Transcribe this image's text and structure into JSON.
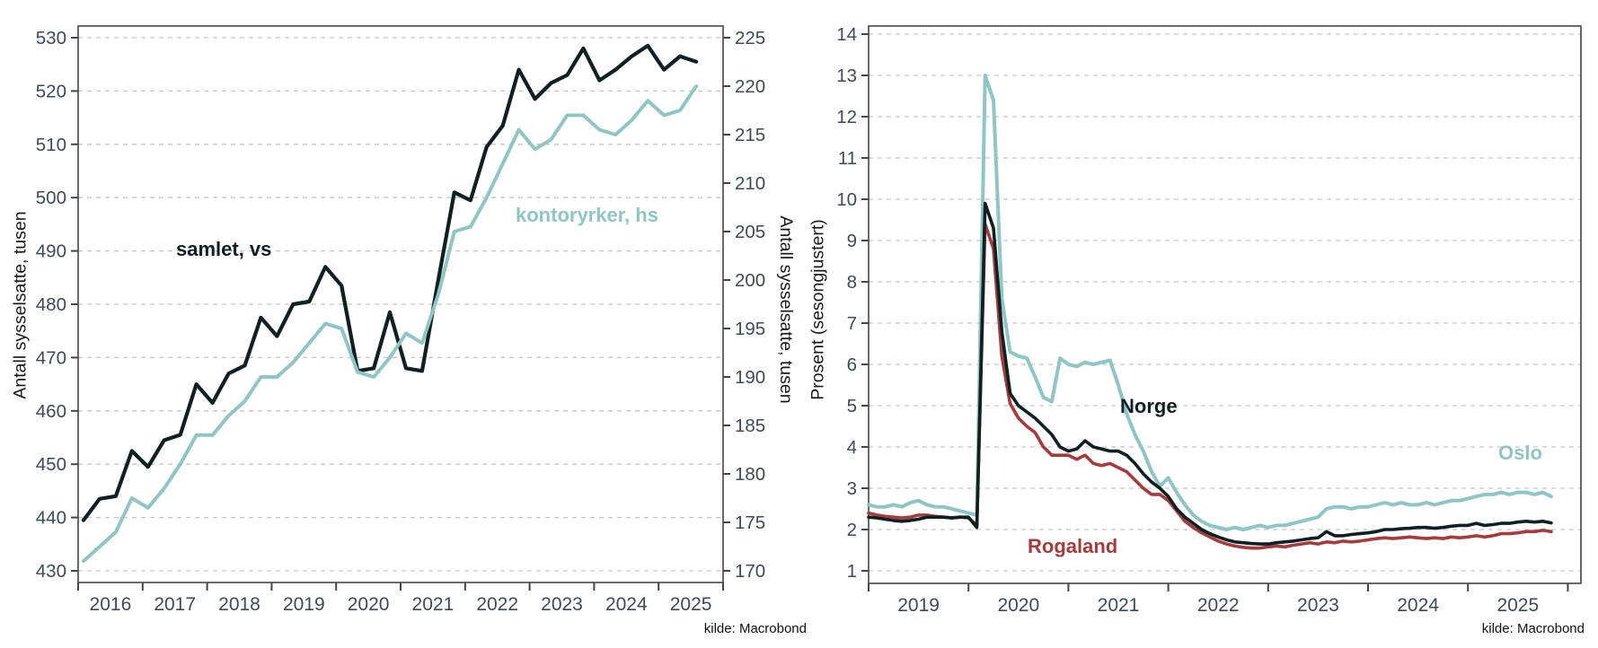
{
  "source_note": "kilde: Macrobond",
  "colors": {
    "dark_line": "#0f2023",
    "teal_line": "#8fc5c2",
    "red_line": "#a43b3c",
    "tick_text": "#3e4b57",
    "axis_border": "#454545",
    "gridline": "#c6c6c6",
    "label_text": "#1a1a1a",
    "background": "#ffffff"
  },
  "chart_data": [
    {
      "type": "line",
      "title": "",
      "ylabel_left": "Antall sysselsatte, tusen",
      "ylabel_right": "Antall sysselsatte, tusen",
      "source": "kilde: Macrobond",
      "grid": "horizontal-dashed",
      "legend_position": "inline-text-labels",
      "x_unit": "quarterly",
      "x_start": 2016.083,
      "x_step": 0.25,
      "x_axis": {
        "tick_years": [
          2016,
          2017,
          2018,
          2019,
          2020,
          2021,
          2022,
          2023,
          2024,
          2025,
          2026
        ],
        "labels": [
          "2016",
          "2017",
          "2018",
          "2019",
          "2020",
          "2021",
          "2022",
          "2023",
          "2024",
          "2025"
        ]
      },
      "left_axis": {
        "min": 430,
        "max": 530,
        "tick_step": 10,
        "ticks": [
          430,
          440,
          450,
          460,
          470,
          480,
          490,
          500,
          510,
          520,
          530
        ]
      },
      "right_axis": {
        "min": 170,
        "max": 225,
        "tick_step": 5,
        "ticks": [
          170,
          175,
          180,
          185,
          190,
          195,
          200,
          205,
          210,
          215,
          220,
          225
        ]
      },
      "series": [
        {
          "key": "samlet",
          "name": "samlet, vs",
          "axis": "left",
          "color": "#0f2023",
          "width": 4.2,
          "values": [
            439.5,
            443.5,
            444,
            452.5,
            449.5,
            454.5,
            455.5,
            465,
            461.5,
            467,
            468.5,
            477.5,
            474,
            480,
            480.5,
            487,
            483.5,
            467.5,
            468,
            478.5,
            468,
            467.5,
            484.5,
            501,
            499.5,
            509.5,
            513.5,
            524,
            518.5,
            521.5,
            523,
            528,
            522,
            524,
            526.5,
            528.5,
            524,
            526.5,
            525.5
          ]
        },
        {
          "key": "kontoryrker",
          "name": "kontoryrker, hs",
          "axis": "right",
          "color": "#8fc5c2",
          "width": 4,
          "values": [
            171,
            172.5,
            174,
            177.5,
            176.5,
            178.5,
            181,
            184,
            184,
            186,
            187.5,
            190,
            190,
            191.5,
            193.5,
            195.5,
            195,
            190.5,
            190,
            192,
            194.5,
            193.5,
            198.5,
            205,
            205.5,
            208.5,
            212,
            215.5,
            213.5,
            214.5,
            217,
            217,
            215.5,
            215,
            216.5,
            218.5,
            217,
            217.5,
            220
          ]
        }
      ]
    },
    {
      "type": "line",
      "title": "",
      "ylabel_left": "Prosent (sesongjustert)",
      "ylabel_right": "",
      "source": "kilde: Macrobond",
      "grid": "horizontal-dashed",
      "legend_position": "inline-text-labels",
      "x_unit": "monthly",
      "x_start": 2019.0,
      "x_step": 0.0833333,
      "x_axis": {
        "tick_years": [
          2019,
          2020,
          2021,
          2022,
          2023,
          2024,
          2025,
          2026
        ],
        "labels": [
          "2019",
          "2020",
          "2021",
          "2022",
          "2023",
          "2024",
          "2025"
        ]
      },
      "left_axis": {
        "min": 1,
        "max": 14,
        "tick_step": 1,
        "ticks": [
          1,
          2,
          3,
          4,
          5,
          6,
          7,
          8,
          9,
          10,
          11,
          12,
          13,
          14
        ]
      },
      "series": [
        {
          "key": "oslo",
          "name": "Oslo",
          "axis": "left",
          "color": "#8fc5c2",
          "width": 4,
          "values": [
            2.6,
            2.55,
            2.55,
            2.6,
            2.55,
            2.65,
            2.7,
            2.6,
            2.55,
            2.55,
            2.5,
            2.45,
            2.4,
            2.35,
            13.0,
            12.4,
            7.6,
            6.3,
            6.2,
            6.15,
            5.7,
            5.2,
            5.1,
            6.15,
            6.0,
            5.95,
            6.05,
            6.0,
            6.05,
            6.1,
            5.5,
            4.8,
            4.3,
            3.9,
            3.4,
            3.05,
            3.25,
            2.9,
            2.6,
            2.35,
            2.2,
            2.1,
            2.05,
            2.0,
            2.05,
            2.0,
            2.05,
            2.1,
            2.05,
            2.1,
            2.1,
            2.15,
            2.2,
            2.25,
            2.3,
            2.5,
            2.55,
            2.55,
            2.5,
            2.55,
            2.55,
            2.6,
            2.65,
            2.6,
            2.65,
            2.6,
            2.6,
            2.65,
            2.6,
            2.65,
            2.7,
            2.7,
            2.75,
            2.8,
            2.85,
            2.85,
            2.9,
            2.85,
            2.9,
            2.9,
            2.85,
            2.9,
            2.8
          ]
        },
        {
          "key": "rogaland",
          "name": "Rogaland",
          "axis": "left",
          "color": "#a43b3c",
          "width": 3.6,
          "values": [
            2.4,
            2.35,
            2.32,
            2.3,
            2.28,
            2.3,
            2.35,
            2.35,
            2.32,
            2.3,
            2.28,
            2.3,
            2.28,
            2.1,
            9.4,
            8.8,
            6.2,
            5.05,
            4.7,
            4.5,
            4.35,
            4.0,
            3.8,
            3.8,
            3.8,
            3.7,
            3.8,
            3.6,
            3.55,
            3.6,
            3.5,
            3.4,
            3.2,
            3.0,
            2.85,
            2.85,
            2.7,
            2.45,
            2.2,
            2.05,
            1.92,
            1.82,
            1.72,
            1.65,
            1.6,
            1.57,
            1.55,
            1.55,
            1.58,
            1.6,
            1.58,
            1.62,
            1.65,
            1.68,
            1.65,
            1.7,
            1.68,
            1.72,
            1.7,
            1.72,
            1.75,
            1.78,
            1.8,
            1.78,
            1.8,
            1.82,
            1.8,
            1.78,
            1.8,
            1.78,
            1.82,
            1.8,
            1.82,
            1.85,
            1.82,
            1.85,
            1.9,
            1.9,
            1.92,
            1.95,
            1.95,
            1.98,
            1.95
          ]
        },
        {
          "key": "norge",
          "name": "Norge",
          "axis": "left",
          "color": "#0f2023",
          "width": 3.6,
          "values": [
            2.3,
            2.28,
            2.25,
            2.22,
            2.2,
            2.22,
            2.25,
            2.3,
            2.3,
            2.3,
            2.28,
            2.3,
            2.3,
            2.05,
            9.9,
            9.3,
            6.8,
            5.3,
            5.0,
            4.85,
            4.7,
            4.5,
            4.3,
            4.0,
            3.9,
            3.95,
            4.15,
            4.0,
            3.95,
            3.9,
            3.9,
            3.8,
            3.6,
            3.35,
            3.15,
            3.0,
            2.8,
            2.5,
            2.3,
            2.15,
            2.0,
            1.9,
            1.82,
            1.75,
            1.7,
            1.68,
            1.66,
            1.65,
            1.65,
            1.68,
            1.7,
            1.72,
            1.75,
            1.78,
            1.8,
            1.95,
            1.85,
            1.85,
            1.88,
            1.9,
            1.92,
            1.95,
            2.0,
            2.0,
            2.02,
            2.03,
            2.05,
            2.05,
            2.03,
            2.05,
            2.08,
            2.1,
            2.1,
            2.15,
            2.1,
            2.12,
            2.15,
            2.15,
            2.18,
            2.2,
            2.18,
            2.2,
            2.16
          ]
        }
      ]
    }
  ]
}
